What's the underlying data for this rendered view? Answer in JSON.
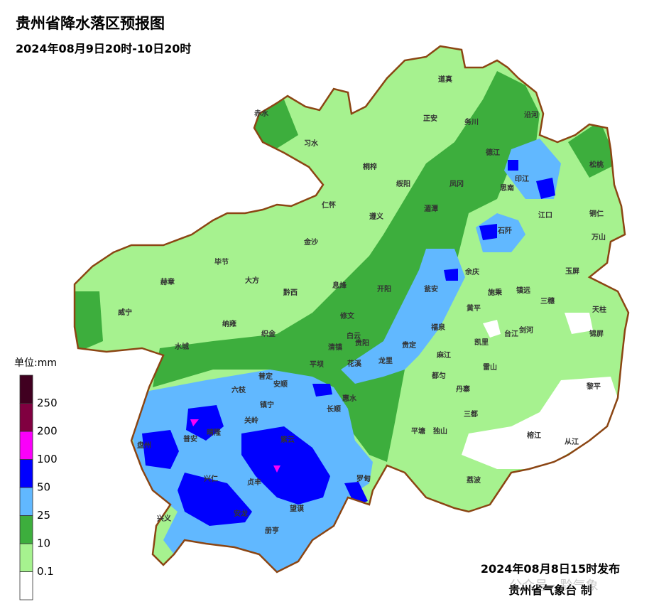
{
  "header": {
    "title": "贵州省降水落区预报图",
    "subtitle": "2024年08月9日20时-10日20时"
  },
  "legend": {
    "unit": "单位:mm",
    "colors": [
      "#ffffff",
      "#a6f28f",
      "#3dae3d",
      "#61b8ff",
      "#0000fe",
      "#fa00fa",
      "#800040",
      "#400020"
    ],
    "thresholds": [
      0.1,
      10,
      25,
      50,
      100,
      200,
      250
    ]
  },
  "places": [
    "道真",
    "赤水",
    "正安",
    "务川",
    "沿河",
    "习水",
    "德江",
    "桐梓",
    "松桃",
    "印江",
    "绥阳",
    "凤冈",
    "思南",
    "仁怀",
    "遵义",
    "湄潭",
    "江口",
    "铜仁",
    "石阡",
    "万山",
    "金沙",
    "毕节",
    "大方",
    "赫章",
    "余庆",
    "玉屏",
    "黔西",
    "息烽",
    "开阳",
    "瓮安",
    "施秉",
    "镇远",
    "三穗",
    "天柱",
    "威宁",
    "修文",
    "黄平",
    "纳雍",
    "织金",
    "白云",
    "福泉",
    "剑河",
    "台江",
    "锦屏",
    "水城",
    "清镇",
    "贵阳",
    "贵定",
    "凯里",
    "麻江",
    "平坝",
    "花溪",
    "龙里",
    "雷山",
    "都匀",
    "普定",
    "安顺",
    "丹寨",
    "黎平",
    "六枝",
    "惠水",
    "镇宁",
    "长顺",
    "三都",
    "关岭",
    "盘州",
    "普安",
    "晴隆",
    "平塘",
    "独山",
    "榕江",
    "从江",
    "紫云",
    "兴仁",
    "贞丰",
    "罗甸",
    "荔波",
    "望谟",
    "兴义",
    "安龙",
    "册亨"
  ],
  "footer": {
    "issued": "2024年08月8日15时发布",
    "issuer": "贵州省气象台 制",
    "watermark": "公众号 · 黔气象"
  }
}
